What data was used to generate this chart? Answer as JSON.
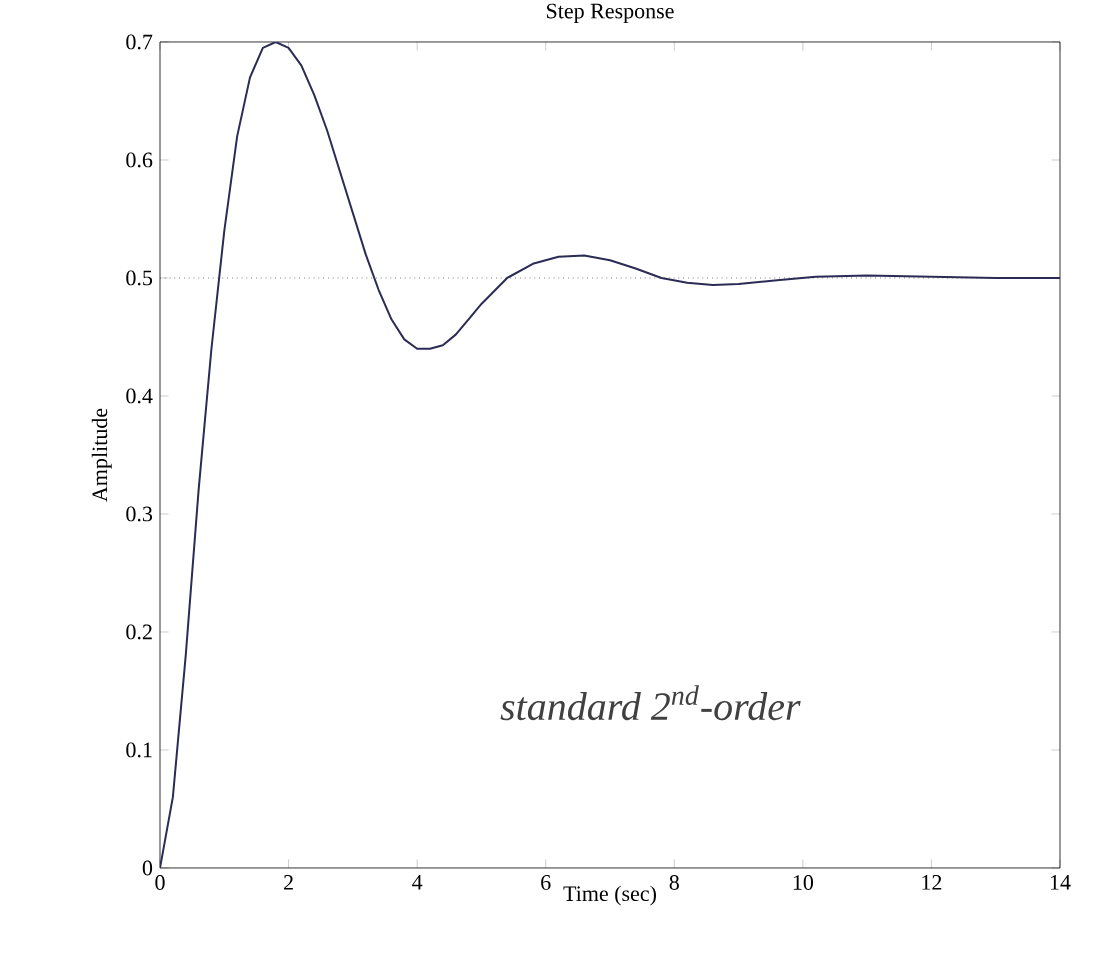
{
  "chart_data": {
    "type": "line",
    "title": "Step Response",
    "xlabel": "Time (sec)",
    "ylabel": "Amplitude",
    "xlim": [
      0,
      14
    ],
    "xticks": [
      0,
      2,
      4,
      6,
      8,
      10,
      12,
      14
    ],
    "ylim": [
      0,
      0.7
    ],
    "yticks": [
      0,
      0.1,
      0.2,
      0.3,
      0.4,
      0.5,
      0.6,
      0.7
    ],
    "grid": false,
    "line_style": "solid",
    "ref_lines": [
      {
        "axis": "y",
        "value": 0.5,
        "color": "#333333",
        "line_style": "dotted"
      }
    ],
    "annotations": [
      "standard 2$^{nd}$-order"
    ],
    "series": [
      {
        "color": "#2b2b55",
        "x": [
          0,
          0.2,
          0.4,
          0.6,
          0.8,
          1.0,
          1.2,
          1.4,
          1.6,
          1.8,
          2.0,
          2.2,
          2.4,
          2.6,
          2.8,
          3.0,
          3.2,
          3.4,
          3.6,
          3.8,
          4.0,
          4.2,
          4.4,
          4.6,
          4.8,
          5.0,
          5.4,
          5.8,
          6.2,
          6.6,
          7.0,
          7.4,
          7.8,
          8.2,
          8.6,
          9.0,
          9.6,
          10.2,
          11,
          12,
          13,
          14
        ],
        "values": [
          0,
          0.06,
          0.18,
          0.32,
          0.44,
          0.54,
          0.62,
          0.67,
          0.695,
          0.7,
          0.695,
          0.68,
          0.655,
          0.625,
          0.59,
          0.555,
          0.52,
          0.49,
          0.465,
          0.448,
          0.44,
          0.44,
          0.443,
          0.452,
          0.465,
          0.478,
          0.5,
          0.512,
          0.518,
          0.519,
          0.515,
          0.508,
          0.5,
          0.496,
          0.494,
          0.495,
          0.498,
          0.501,
          0.502,
          0.501,
          0.5,
          0.5
        ]
      }
    ]
  }
}
